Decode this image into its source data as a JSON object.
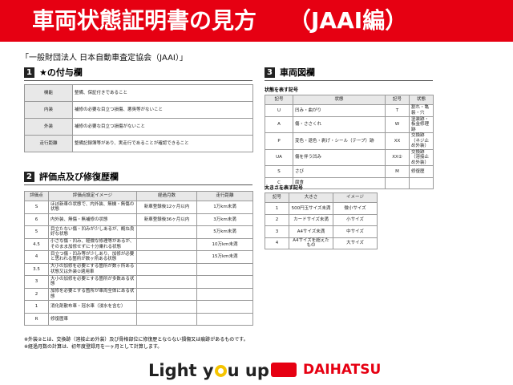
{
  "header": {
    "title": "車両状態証明書の見方",
    "title_suffix": "（JAAI編）"
  },
  "subtitle": "「一般財団法人 日本自動車査定協会（JAAI）」",
  "section1": {
    "number": "1",
    "heading": "★の付与欄",
    "table": {
      "rows": [
        [
          "機能",
          "整備、保証付きであること"
        ],
        [
          "内装",
          "補修の必要な目立つ損傷、悪臭等がないこと"
        ],
        [
          "外装",
          "補修の必要な目立つ損傷がないこと"
        ],
        [
          "走行距離",
          "整備記録簿等があり、実走行であることが確認できること"
        ]
      ]
    }
  },
  "section2": {
    "number": "2",
    "heading": "評価点及び修復歴欄",
    "table": {
      "header": [
        "評価点",
        "評価点設定イメージ",
        "経過月数",
        "走行距離"
      ],
      "rows": [
        [
          "S",
          "ほぼ新車の状態で、内外装、無機・無傷の状態",
          "新車登録後12ヶ月以内",
          "1万km未満"
        ],
        [
          "6",
          "内外装、無傷・無補修の状態",
          "新車登録後36ヶ月以内",
          "3万km未満"
        ],
        [
          "5",
          "目立たない傷・凹みが少しあるが、概ね良好な状態",
          null,
          "5万km未満"
        ],
        [
          "4.5",
          "小さな傷・凹み、軽微な修理等があるが、そのまま加修せずに十分乗れる状態",
          null,
          "10万km未満"
        ],
        [
          "4",
          "目立つ傷・凹み等が少しあり、加修が必要と思われる箇所が数ヶ所ある状態",
          null,
          "15万km未満"
        ],
        [
          "3.5",
          "大小の加修を必要とする箇所が数ヶ所ある状態又は外装②適用車",
          null,
          null
        ],
        [
          "3",
          "大小の加修を必要とする箇所が多数ある状態",
          null,
          null
        ],
        [
          "2",
          "加修を必要とする箇所が車両全体にある状態",
          null,
          null
        ],
        [
          "1",
          "消化剤散布車・冠水車（浸水を含む）",
          null,
          null
        ],
        [
          "R",
          "修復歴車",
          null,
          null
        ]
      ]
    }
  },
  "notes": [
    "※外装②とは、交換跡（溶接止め外装）及び骨格部位に修復歴とならない損傷又は痕跡があるものです。",
    "※経過月数の計算は、初年度登録月を一ヶ月として計算します。"
  ],
  "section3": {
    "number": "3",
    "heading": "車両図欄",
    "state_caption": "状態を表す記号",
    "state_table": {
      "header": [
        "記号",
        "状態",
        "記号",
        "状態"
      ],
      "rows": [
        [
          "U",
          "凹み・曲がり",
          "T",
          "割れ・亀裂・穴"
        ],
        [
          "A",
          "傷・ささくれ",
          "W",
          "塗装跡・板金修理跡"
        ],
        [
          "P",
          "変色・退色・剥げ・シール（テープ）跡",
          "XX",
          "交換跡（ネジ止め外装）"
        ],
        [
          "UA",
          "傷を伴う凹み",
          "XX②",
          "交換跡（溶接止め外装）"
        ],
        [
          "S",
          "さび",
          "M",
          "修復歴"
        ],
        [
          "C",
          "腐食",
          null,
          null
        ]
      ]
    },
    "size_caption": "大きさを表す記号",
    "size_table": {
      "header": [
        "記号",
        "大きさ",
        "イメージ"
      ],
      "rows": [
        [
          "1",
          "500円玉サイズ未満",
          "微小サイズ"
        ],
        [
          "2",
          "カードサイズ未満",
          "小サイズ"
        ],
        [
          "3",
          "A4サイズ未満",
          "中サイズ"
        ],
        [
          "4",
          "A4サイズを超えたもの",
          "大サイズ"
        ]
      ]
    }
  },
  "footer": {
    "tagline_start": "Light y",
    "tagline_end": "u up",
    "brand": "DAIHATSU"
  }
}
